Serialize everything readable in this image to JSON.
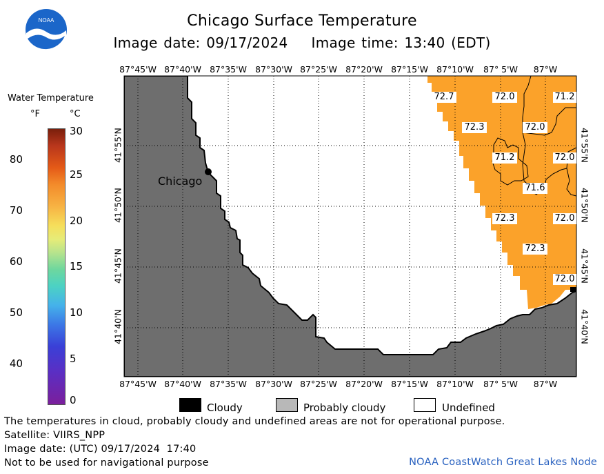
{
  "header": {
    "title": "Chicago Surface Temperature",
    "image_date": "Image date: 09/17/2024",
    "image_time": "Image time: 13:40 (EDT)",
    "logo_text": "NOAA"
  },
  "legend": {
    "title": "Water Temperature",
    "unit_f": "°F",
    "unit_c": "°C",
    "f_ticks": [
      "80",
      "70",
      "60",
      "50",
      "40"
    ],
    "c_ticks": [
      "30",
      "25",
      "20",
      "15",
      "10",
      "5",
      "0"
    ]
  },
  "map": {
    "lon_labels": [
      "87°45'W",
      "87°40'W",
      "87°35'W",
      "87°30'W",
      "87°25'W",
      "87°20'W",
      "87°15'W",
      "87°10'W",
      "87° 5'W",
      "87°W"
    ],
    "lat_labels": [
      "41°55'N",
      "41°50'N",
      "41°45'N",
      "41°40'N"
    ],
    "city": "Chicago",
    "temperature_labels": [
      "72.7",
      "72.0",
      "71.2",
      "72.3",
      "72.0",
      "71.2",
      "72.0",
      "71.6",
      "72.3",
      "72.0",
      "72.3",
      "72.0"
    ],
    "colors": {
      "land": "#6e6e6e",
      "water_warm": "#fba22a",
      "undefined": "#ffffff"
    }
  },
  "key": {
    "cloudy": "Cloudy",
    "probably_cloudy": "Probably cloudy",
    "undefined": "Undefined"
  },
  "footer": {
    "note": "The temperatures in cloud, probably cloudy and undefined areas are not for operational purpose.",
    "satellite": "Satellite: VIIRS_NPP",
    "utc_date": "Image date: (UTC) 09/17/2024  17:40",
    "nav_warning": "Not to be used for navigational purpose",
    "credit": "NOAA CoastWatch Great Lakes Node"
  }
}
